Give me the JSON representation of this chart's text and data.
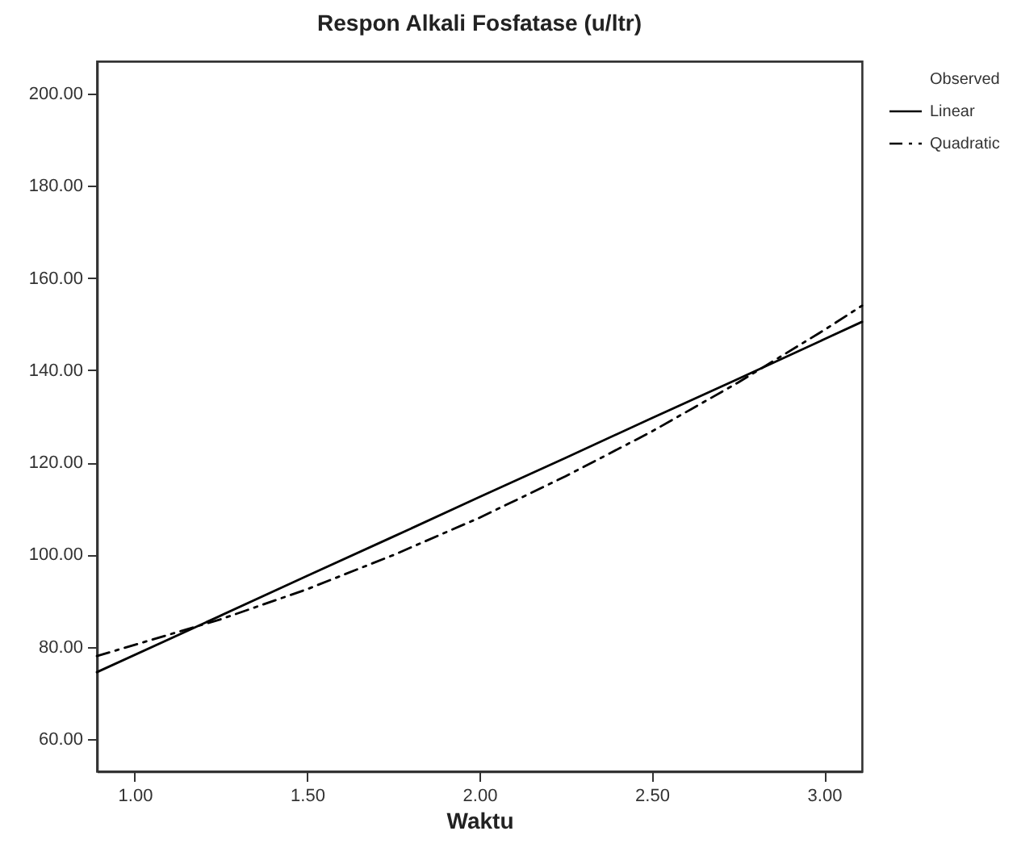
{
  "chart_data": {
    "type": "line",
    "title": "Respon Alkali Fosfatase (u/ltr)",
    "xlabel": "Waktu",
    "x": [
      0.89,
      1.25,
      1.5,
      1.75,
      2,
      2.25,
      2.5,
      2.75,
      3,
      3.11
    ],
    "series": [
      {
        "name": "Observed",
        "values": [
          null,
          null,
          null,
          null,
          null,
          null,
          null,
          null,
          null,
          null
        ]
      },
      {
        "name": "Linear",
        "color": "#000000",
        "line_style": "solid",
        "values": [
          74.5,
          86.8,
          95.4,
          103.9,
          112.5,
          121.0,
          129.6,
          138.1,
          146.7,
          150.5
        ]
      },
      {
        "name": "Quadratic",
        "color": "#000000",
        "line_style": "dashed",
        "values": [
          78,
          86.0,
          92.5,
          99.9,
          108,
          117.0,
          126.7,
          137.3,
          148.7,
          154
        ]
      }
    ],
    "xlim": [
      0.89,
      3.11
    ],
    "xticks": [
      {
        "value": 1,
        "label": "1.00"
      },
      {
        "value": 1.5,
        "label": "1.50"
      },
      {
        "value": 2,
        "label": "2.00"
      },
      {
        "value": 2.5,
        "label": "2.50"
      },
      {
        "value": 3,
        "label": "3.00"
      }
    ],
    "ylim": [
      53,
      207
    ],
    "yticks": [
      {
        "value": 60,
        "label": "60.00"
      },
      {
        "value": 80,
        "label": "80.00"
      },
      {
        "value": 100,
        "label": "100.00"
      },
      {
        "value": 120,
        "label": "120.00"
      },
      {
        "value": 140,
        "label": "140.00"
      },
      {
        "value": 160,
        "label": "160.00"
      },
      {
        "value": 180,
        "label": "180.00"
      },
      {
        "value": 200,
        "label": "200.00"
      }
    ],
    "grid": false,
    "legend": "top right",
    "marker": "none"
  }
}
